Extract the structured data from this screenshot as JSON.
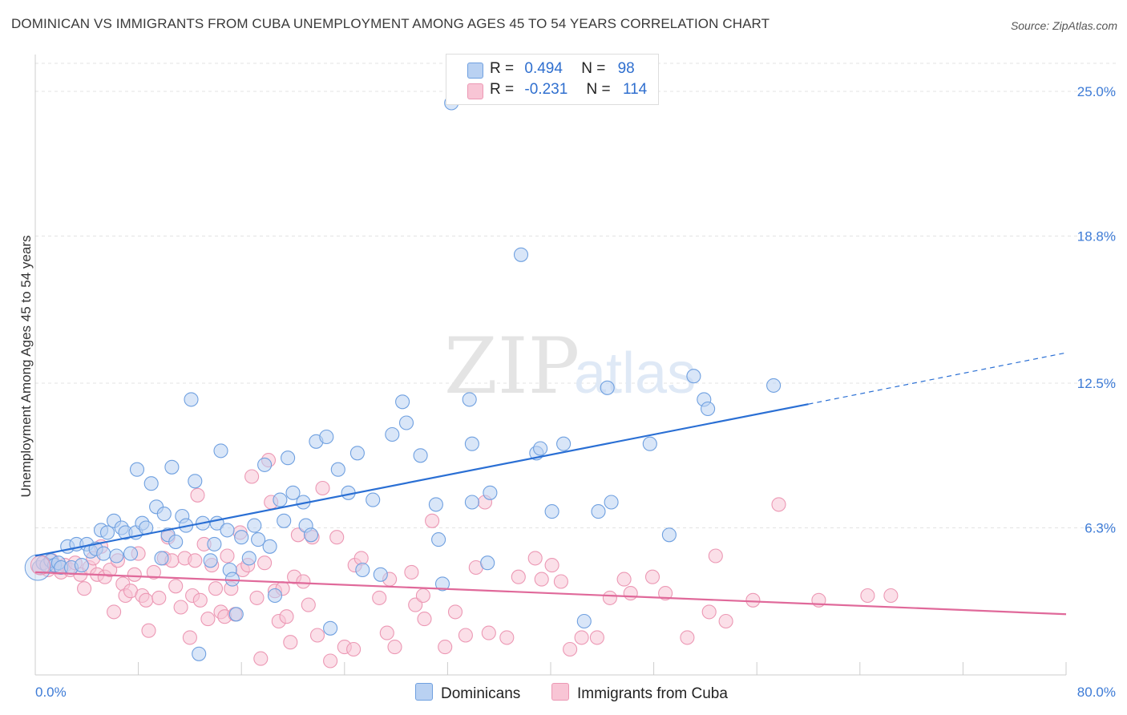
{
  "title": "DOMINICAN VS IMMIGRANTS FROM CUBA UNEMPLOYMENT AMONG AGES 45 TO 54 YEARS CORRELATION CHART",
  "source": "Source: ZipAtlas.com",
  "watermark": {
    "zip": "ZIP",
    "atlas": "atlas"
  },
  "legend_stats": [
    {
      "r_label": "R =",
      "r_value": "0.494",
      "n_label": "N =",
      "n_value": "98",
      "color": "#a9c7ee"
    },
    {
      "r_label": "R =",
      "r_value": "-0.231",
      "n_label": "N =",
      "n_value": "114",
      "color": "#f4b8cb"
    }
  ],
  "bottom_legend": [
    {
      "label": "Dominicans",
      "color": "#a9c7ee"
    },
    {
      "label": "Immigrants from Cuba",
      "color": "#f4b8cb"
    }
  ],
  "chart_data": {
    "type": "scatter",
    "title": "DOMINICAN VS IMMIGRANTS FROM CUBA UNEMPLOYMENT AMONG AGES 45 TO 54 YEARS CORRELATION CHART",
    "xlabel": "",
    "ylabel": "Unemployment Among Ages 45 to 54 years",
    "xlim": [
      0,
      80
    ],
    "ylim": [
      0,
      26.2
    ],
    "x_tick_labels": [
      "0.0%",
      "80.0%"
    ],
    "y_ticks": [
      6.3,
      12.5,
      18.8,
      25.0
    ],
    "y_tick_labels": [
      "6.3%",
      "12.5%",
      "18.8%",
      "25.0%"
    ],
    "grid": true,
    "series": [
      {
        "name": "Dominicans",
        "color": "#6fa0e0",
        "fill": "#b9d1f2",
        "trend": {
          "x0": 0,
          "y0": 5.1,
          "x1": 60,
          "y1": 11.6,
          "dash_to_x": 80,
          "dash_to_y": 13.8,
          "color": "#2a6fd4"
        },
        "points": [
          [
            0.3,
            4.6
          ],
          [
            0.6,
            4.8
          ],
          [
            0.9,
            4.7
          ],
          [
            1.2,
            4.9
          ],
          [
            1.5,
            4.7
          ],
          [
            1.8,
            4.8
          ],
          [
            2.0,
            4.6
          ],
          [
            2.5,
            5.5
          ],
          [
            2.8,
            4.6
          ],
          [
            3.2,
            5.6
          ],
          [
            3.6,
            4.7
          ],
          [
            4.0,
            5.6
          ],
          [
            4.3,
            5.3
          ],
          [
            4.7,
            5.4
          ],
          [
            5.1,
            6.2
          ],
          [
            5.3,
            5.2
          ],
          [
            5.6,
            6.1
          ],
          [
            6.1,
            6.6
          ],
          [
            6.3,
            5.1
          ],
          [
            6.7,
            6.3
          ],
          [
            7.0,
            6.1
          ],
          [
            7.4,
            5.2
          ],
          [
            7.8,
            6.1
          ],
          [
            7.9,
            8.8
          ],
          [
            8.3,
            6.5
          ],
          [
            8.6,
            6.3
          ],
          [
            9.0,
            8.2
          ],
          [
            9.4,
            7.2
          ],
          [
            9.8,
            5.0
          ],
          [
            10.0,
            6.9
          ],
          [
            10.3,
            6.0
          ],
          [
            10.6,
            8.9
          ],
          [
            10.9,
            5.7
          ],
          [
            11.4,
            6.8
          ],
          [
            11.7,
            6.4
          ],
          [
            12.1,
            11.8
          ],
          [
            12.4,
            8.3
          ],
          [
            12.7,
            0.9
          ],
          [
            13.0,
            6.5
          ],
          [
            13.6,
            4.9
          ],
          [
            13.9,
            5.6
          ],
          [
            14.1,
            6.5
          ],
          [
            14.4,
            9.6
          ],
          [
            14.9,
            6.2
          ],
          [
            15.1,
            4.5
          ],
          [
            15.3,
            4.1
          ],
          [
            15.6,
            2.6
          ],
          [
            16.0,
            5.9
          ],
          [
            16.6,
            5.0
          ],
          [
            17.0,
            6.4
          ],
          [
            17.3,
            5.8
          ],
          [
            17.8,
            9.0
          ],
          [
            18.2,
            5.5
          ],
          [
            18.6,
            3.4
          ],
          [
            19.0,
            7.5
          ],
          [
            19.3,
            6.6
          ],
          [
            19.6,
            9.3
          ],
          [
            20.0,
            7.8
          ],
          [
            20.8,
            7.4
          ],
          [
            21.0,
            6.4
          ],
          [
            21.4,
            6.0
          ],
          [
            21.8,
            10.0
          ],
          [
            22.6,
            10.2
          ],
          [
            22.9,
            2.0
          ],
          [
            23.5,
            8.8
          ],
          [
            24.3,
            7.8
          ],
          [
            25.0,
            9.5
          ],
          [
            25.4,
            4.5
          ],
          [
            26.2,
            7.5
          ],
          [
            26.8,
            4.3
          ],
          [
            27.7,
            10.3
          ],
          [
            28.5,
            11.7
          ],
          [
            28.8,
            10.8
          ],
          [
            29.9,
            9.4
          ],
          [
            31.1,
            7.3
          ],
          [
            31.3,
            5.8
          ],
          [
            31.6,
            3.9
          ],
          [
            32.3,
            24.5
          ],
          [
            33.7,
            11.8
          ],
          [
            33.9,
            7.4
          ],
          [
            33.9,
            9.9
          ],
          [
            35.1,
            4.8
          ],
          [
            35.3,
            7.8
          ],
          [
            37.7,
            18.0
          ],
          [
            38.9,
            9.5
          ],
          [
            39.2,
            9.7
          ],
          [
            40.1,
            7.0
          ],
          [
            41.0,
            9.9
          ],
          [
            42.6,
            2.3
          ],
          [
            43.7,
            7.0
          ],
          [
            44.4,
            12.3
          ],
          [
            44.7,
            7.4
          ],
          [
            47.7,
            9.9
          ],
          [
            49.2,
            6.0
          ],
          [
            51.1,
            12.8
          ],
          [
            51.9,
            11.8
          ],
          [
            52.2,
            11.4
          ],
          [
            57.3,
            12.4
          ]
        ]
      },
      {
        "name": "Immigrants from Cuba",
        "color": "#ec98b4",
        "fill": "#f8c5d5",
        "trend": {
          "x0": 0,
          "y0": 4.4,
          "x1": 80,
          "y1": 2.6,
          "color": "#e0699a"
        },
        "points": [
          [
            0.3,
            4.6
          ],
          [
            0.6,
            4.8
          ],
          [
            1.0,
            4.5
          ],
          [
            1.3,
            4.9
          ],
          [
            1.7,
            4.6
          ],
          [
            2.0,
            4.4
          ],
          [
            2.3,
            4.7
          ],
          [
            2.7,
            4.5
          ],
          [
            3.1,
            4.8
          ],
          [
            3.5,
            4.3
          ],
          [
            3.8,
            3.7
          ],
          [
            4.2,
            4.6
          ],
          [
            4.5,
            5.0
          ],
          [
            4.8,
            4.3
          ],
          [
            5.1,
            5.5
          ],
          [
            5.4,
            4.2
          ],
          [
            5.8,
            4.5
          ],
          [
            6.1,
            2.7
          ],
          [
            6.4,
            4.9
          ],
          [
            6.8,
            3.9
          ],
          [
            7.0,
            3.4
          ],
          [
            7.4,
            3.6
          ],
          [
            7.7,
            4.3
          ],
          [
            8.0,
            5.2
          ],
          [
            8.3,
            3.4
          ],
          [
            8.6,
            3.2
          ],
          [
            8.8,
            1.9
          ],
          [
            9.2,
            4.4
          ],
          [
            9.6,
            3.3
          ],
          [
            10.0,
            5.0
          ],
          [
            10.3,
            5.9
          ],
          [
            10.6,
            4.9
          ],
          [
            10.9,
            3.8
          ],
          [
            11.3,
            2.9
          ],
          [
            11.6,
            5.0
          ],
          [
            12.0,
            1.6
          ],
          [
            12.2,
            3.4
          ],
          [
            12.4,
            4.9
          ],
          [
            12.6,
            7.7
          ],
          [
            12.8,
            3.2
          ],
          [
            13.1,
            5.6
          ],
          [
            13.4,
            2.4
          ],
          [
            13.7,
            4.7
          ],
          [
            14.0,
            3.7
          ],
          [
            14.4,
            2.7
          ],
          [
            14.7,
            2.5
          ],
          [
            14.9,
            5.1
          ],
          [
            15.2,
            3.7
          ],
          [
            15.5,
            2.6
          ],
          [
            15.9,
            6.1
          ],
          [
            16.1,
            4.5
          ],
          [
            16.5,
            4.7
          ],
          [
            16.8,
            8.5
          ],
          [
            17.2,
            3.3
          ],
          [
            17.5,
            0.7
          ],
          [
            17.8,
            4.8
          ],
          [
            18.1,
            9.2
          ],
          [
            18.3,
            7.4
          ],
          [
            18.6,
            3.6
          ],
          [
            18.9,
            2.3
          ],
          [
            19.2,
            3.7
          ],
          [
            19.5,
            2.5
          ],
          [
            19.8,
            1.4
          ],
          [
            20.1,
            4.2
          ],
          [
            20.4,
            6.0
          ],
          [
            20.8,
            4.0
          ],
          [
            21.2,
            3.0
          ],
          [
            21.5,
            5.9
          ],
          [
            21.9,
            1.7
          ],
          [
            22.3,
            8.0
          ],
          [
            22.9,
            0.6
          ],
          [
            23.4,
            5.9
          ],
          [
            24.0,
            1.2
          ],
          [
            24.7,
            1.1
          ],
          [
            24.8,
            4.7
          ],
          [
            25.3,
            5.0
          ],
          [
            26.7,
            3.3
          ],
          [
            27.3,
            1.8
          ],
          [
            27.5,
            4.1
          ],
          [
            27.9,
            1.2
          ],
          [
            29.2,
            4.4
          ],
          [
            29.5,
            3.0
          ],
          [
            30.1,
            3.4
          ],
          [
            30.2,
            2.4
          ],
          [
            30.8,
            6.6
          ],
          [
            31.8,
            1.2
          ],
          [
            32.6,
            2.7
          ],
          [
            33.4,
            1.7
          ],
          [
            34.2,
            4.6
          ],
          [
            34.9,
            7.4
          ],
          [
            35.2,
            1.8
          ],
          [
            36.6,
            1.6
          ],
          [
            37.5,
            4.2
          ],
          [
            38.8,
            5.0
          ],
          [
            39.3,
            4.1
          ],
          [
            40.1,
            4.7
          ],
          [
            40.8,
            4.0
          ],
          [
            41.5,
            1.1
          ],
          [
            42.4,
            1.6
          ],
          [
            43.6,
            1.6
          ],
          [
            44.6,
            3.3
          ],
          [
            45.7,
            4.1
          ],
          [
            46.2,
            3.5
          ],
          [
            47.9,
            4.2
          ],
          [
            48.9,
            3.5
          ],
          [
            50.6,
            1.6
          ],
          [
            52.3,
            2.7
          ],
          [
            52.8,
            5.1
          ],
          [
            53.6,
            2.3
          ],
          [
            55.7,
            3.2
          ],
          [
            57.7,
            7.3
          ],
          [
            60.8,
            3.2
          ],
          [
            64.6,
            3.4
          ],
          [
            66.4,
            3.4
          ]
        ]
      }
    ]
  }
}
